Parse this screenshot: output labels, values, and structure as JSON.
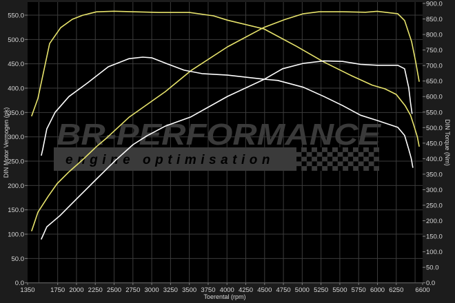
{
  "chart_data": {
    "type": "line",
    "xlabel": "Toerental (rpm)",
    "ylabel_left": "DIN Motor Vermogen (pk)",
    "ylabel_right": "DIN Torque (Nm)",
    "xlim": [
      1350,
      6600
    ],
    "ylim_left": [
      0,
      574
    ],
    "ylim_right": [
      0,
      900
    ],
    "x_ticks": [
      1350,
      1750,
      2000,
      2250,
      2500,
      2750,
      3000,
      3250,
      3500,
      3750,
      4000,
      4250,
      4500,
      4750,
      5000,
      5250,
      5500,
      5750,
      6000,
      6250,
      6600
    ],
    "x_grid": [
      1500,
      1750,
      2000,
      2250,
      2500,
      2750,
      3000,
      3250,
      3500,
      3750,
      4000,
      4250,
      4500,
      4750,
      5000,
      5250,
      5500,
      5750,
      6000,
      6250,
      6500
    ],
    "y_ticks_left": [
      "0.0",
      "50.0",
      "100.0",
      "150.0",
      "200.0",
      "250.0",
      "300.0",
      "350.0",
      "400.0",
      "450.0",
      "500.0",
      "550.0"
    ],
    "y_ticks_right": [
      "0.0",
      "50.0",
      "100.0",
      "150.0",
      "200.0",
      "250.0",
      "300.0",
      "350.0",
      "400.0",
      "450.0",
      "500.0",
      "550.0",
      "600.0",
      "650.0",
      "700.0",
      "750.0",
      "800.0",
      "850.0",
      "900.0"
    ],
    "grid": true,
    "legend": "none",
    "series": [
      {
        "axis": "left",
        "color": "#e8e46c",
        "x": [
          1405,
          1487,
          1625,
          1744,
          1900,
          2083,
          2266,
          2404,
          2697,
          3182,
          3521,
          4007,
          4493,
          4768,
          5015,
          5225,
          5537,
          5840,
          5995,
          6270,
          6361,
          6453,
          6508,
          6554
        ],
        "y": [
          107,
          145,
          178,
          204,
          228,
          253,
          280,
          298,
          340,
          393,
          436,
          485,
          525,
          541,
          553,
          557,
          557,
          556,
          558,
          553,
          539,
          496,
          454,
          414
        ]
      },
      {
        "axis": "right",
        "color": "#e8e46c",
        "x": [
          1405,
          1487,
          1643,
          1790,
          1945,
          2083,
          2266,
          2495,
          3090,
          3500,
          3820,
          4007,
          4493,
          4923,
          5290,
          5656,
          5930,
          6100,
          6250,
          6370,
          6440,
          6480,
          6530,
          6554
        ],
        "y": [
          538,
          594,
          771,
          822,
          849,
          862,
          873,
          875,
          871,
          871,
          860,
          846,
          818,
          762,
          711,
          667,
          637,
          625,
          607,
          570,
          540,
          510,
          470,
          440
        ]
      },
      {
        "axis": "left",
        "color": "#ffffff",
        "x": [
          1533,
          1606,
          1780,
          1991,
          2239,
          2514,
          2752,
          2935,
          3182,
          3521,
          4007,
          4493,
          4740,
          5015,
          5290,
          5537,
          5775,
          5995,
          6270,
          6361,
          6416,
          6440,
          6460
        ],
        "y": [
          90,
          115,
          138,
          171,
          209,
          251,
          284,
          302,
          322,
          341,
          383,
          418,
          440,
          451,
          456,
          455,
          449,
          447,
          447,
          440,
          401,
          370,
          348
        ]
      },
      {
        "axis": "right",
        "color": "#ffffff",
        "x": [
          1533,
          1551,
          1606,
          1716,
          1900,
          2147,
          2422,
          2697,
          2880,
          2999,
          3210,
          3430,
          3668,
          4007,
          4493,
          4676,
          5015,
          5290,
          5537,
          5775,
          5995,
          6270,
          6361,
          6416,
          6450,
          6470
        ],
        "y": [
          411,
          429,
          496,
          549,
          600,
          644,
          696,
          722,
          727,
          725,
          705,
          685,
          674,
          669,
          656,
          652,
          630,
          600,
          571,
          540,
          523,
          501,
          475,
          430,
          400,
          372
        ]
      }
    ]
  },
  "logo": {
    "brand": "BR-Performance",
    "tagline": "engine optimisation"
  },
  "colors": {
    "background": "#1c1c1c",
    "plot": "#000000",
    "grid": "#3c3c3c",
    "tuned": "#e8e46c",
    "stock": "#ffffff"
  }
}
